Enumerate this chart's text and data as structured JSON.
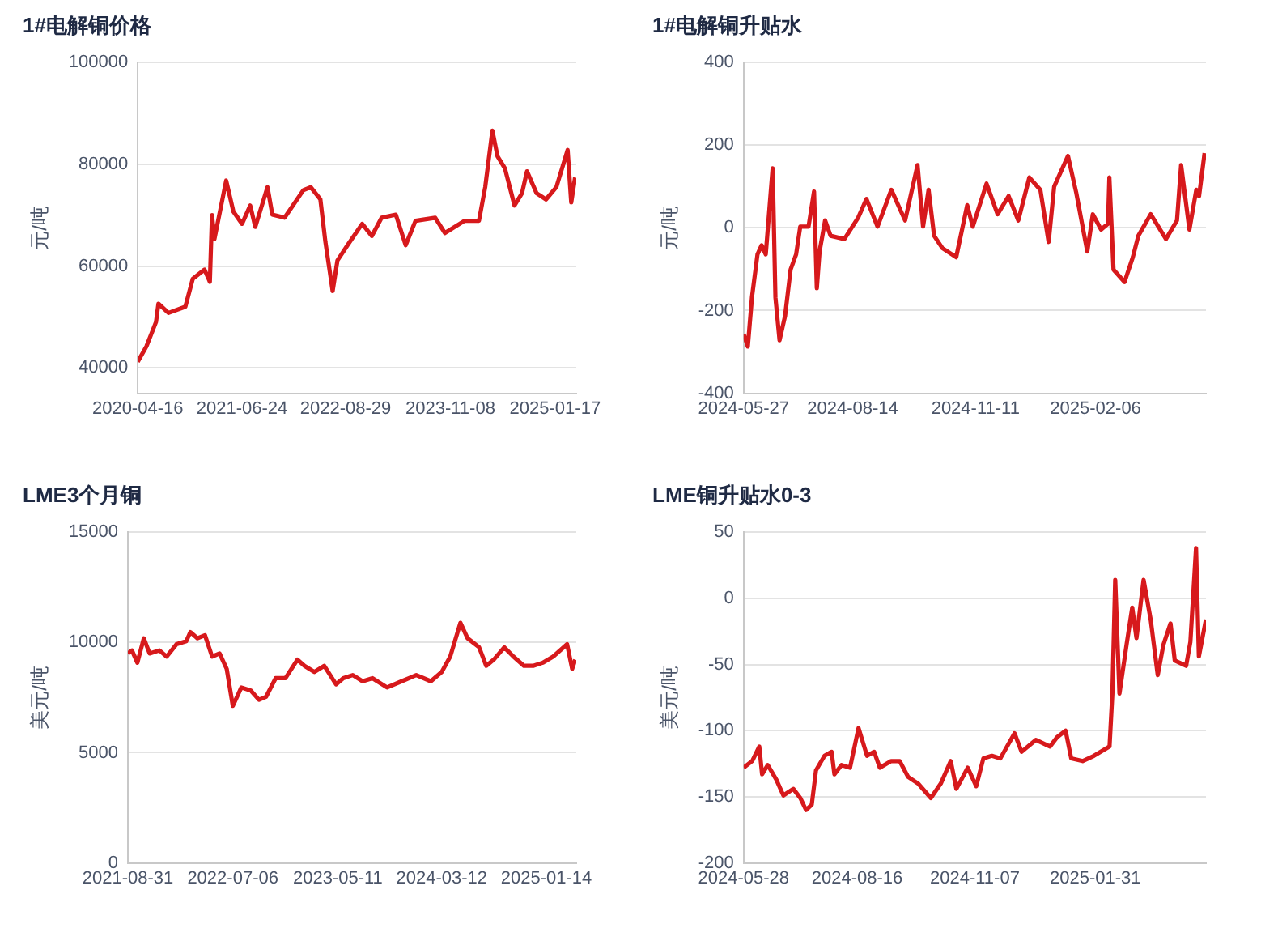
{
  "chart_data": [
    {
      "type": "line",
      "title": "1#电解铜价格",
      "ylabel": "元/吨",
      "grid": "y",
      "xlim": [
        "2020-04-16",
        "2025-04-15"
      ],
      "xticks": [
        {
          "value": "2020-04-16",
          "label": "2020-04-16"
        },
        {
          "value": "2021-06-24",
          "label": "2021-06-24"
        },
        {
          "value": "2022-08-29",
          "label": "2022-08-29"
        },
        {
          "value": "2023-11-08",
          "label": "2023-11-08"
        },
        {
          "value": "2025-01-17",
          "label": "2025-01-17"
        }
      ],
      "ylim": [
        35000,
        100000
      ],
      "yticks": [
        40000,
        60000,
        80000,
        100000
      ],
      "series": [
        {
          "color": "#d7191c",
          "x": [
            "2020-04-16",
            "2020-05-22",
            "2020-07-01",
            "2020-07-11",
            "2020-08-22",
            "2020-10-31",
            "2020-12-01",
            "2021-01-19",
            "2021-02-10",
            "2021-02-19",
            "2021-03-01",
            "2021-04-19",
            "2021-05-19",
            "2021-06-24",
            "2021-07-28",
            "2021-08-18",
            "2021-10-08",
            "2021-10-28",
            "2021-12-18",
            "2022-03-06",
            "2022-04-06",
            "2022-05-16",
            "2022-06-06",
            "2022-07-06",
            "2022-07-26",
            "2022-09-06",
            "2022-11-06",
            "2022-12-16",
            "2023-01-26",
            "2023-03-26",
            "2023-05-06",
            "2023-06-16",
            "2023-09-06",
            "2023-10-16",
            "2024-01-06",
            "2024-03-06",
            "2024-04-01",
            "2024-05-01",
            "2024-05-22",
            "2024-06-22",
            "2024-08-01",
            "2024-09-01",
            "2024-09-22",
            "2024-11-01",
            "2024-12-10",
            "2025-01-22",
            "2025-03-10",
            "2025-03-25",
            "2025-04-10"
          ],
          "values": [
            41200,
            44200,
            49000,
            52600,
            50800,
            52000,
            57500,
            59300,
            56900,
            70000,
            65300,
            76800,
            70700,
            68300,
            71900,
            67700,
            75500,
            70100,
            69500,
            74900,
            75500,
            73100,
            64700,
            55100,
            61100,
            64100,
            68300,
            65900,
            69500,
            70100,
            64100,
            68900,
            69500,
            66500,
            68900,
            68900,
            75500,
            86600,
            81600,
            79200,
            71900,
            74300,
            78600,
            74300,
            73100,
            75500,
            82800,
            72500,
            77400
          ]
        }
      ]
    },
    {
      "type": "line",
      "title": "1#电解铜升贴水",
      "ylabel": "元/吨",
      "grid": "y",
      "xlim": [
        "2024-05-27",
        "2025-04-27"
      ],
      "xticks": [
        {
          "value": "2024-05-27",
          "label": "2024-05-27"
        },
        {
          "value": "2024-08-14",
          "label": "2024-08-14"
        },
        {
          "value": "2024-11-11",
          "label": "2024-11-11"
        },
        {
          "value": "2025-02-06",
          "label": "2025-02-06"
        }
      ],
      "ylim": [
        -400,
        400
      ],
      "yticks": [
        -400,
        -200,
        0,
        200,
        400
      ],
      "series": [
        {
          "color": "#d7191c",
          "x": [
            "2024-05-27",
            "2024-05-30",
            "2024-06-02",
            "2024-06-06",
            "2024-06-09",
            "2024-06-12",
            "2024-06-17",
            "2024-06-19",
            "2024-06-22",
            "2024-06-26",
            "2024-06-30",
            "2024-07-04",
            "2024-07-07",
            "2024-07-13",
            "2024-07-17",
            "2024-07-19",
            "2024-07-21",
            "2024-07-25",
            "2024-07-29",
            "2024-08-08",
            "2024-08-18",
            "2024-08-24",
            "2024-09-01",
            "2024-09-11",
            "2024-09-21",
            "2024-09-30",
            "2024-10-04",
            "2024-10-08",
            "2024-10-12",
            "2024-10-18",
            "2024-10-28",
            "2024-11-05",
            "2024-11-09",
            "2024-11-19",
            "2024-11-27",
            "2024-12-05",
            "2024-12-12",
            "2024-12-20",
            "2024-12-28",
            "2025-01-03",
            "2025-01-07",
            "2025-01-17",
            "2025-01-23",
            "2025-01-31",
            "2025-02-04",
            "2025-02-10",
            "2025-02-15",
            "2025-02-16",
            "2025-02-19",
            "2025-02-27",
            "2025-03-05",
            "2025-03-09",
            "2025-03-18",
            "2025-03-29",
            "2025-04-06",
            "2025-04-09",
            "2025-04-15",
            "2025-04-20",
            "2025-04-22",
            "2025-04-26"
          ],
          "values": [
            -257,
            -287,
            -168,
            -64,
            -42,
            -64,
            144,
            -168,
            -272,
            -213,
            -101,
            -64,
            3,
            3,
            88,
            -146,
            -57,
            18,
            -19,
            -27,
            25,
            70,
            3,
            92,
            18,
            152,
            3,
            92,
            -19,
            -49,
            -71,
            55,
            3,
            107,
            33,
            77,
            18,
            122,
            92,
            -34,
            100,
            174,
            85,
            -57,
            33,
            -4,
            10,
            122,
            -101,
            -131,
            -71,
            -19,
            33,
            -27,
            18,
            152,
            -4,
            92,
            77,
            181
          ]
        }
      ]
    },
    {
      "type": "line",
      "title": "LME3个月铜",
      "ylabel": "美元/吨",
      "grid": "y",
      "xlim": [
        "2021-08-31",
        "2025-04-12"
      ],
      "xticks": [
        {
          "value": "2021-08-31",
          "label": "2021-08-31"
        },
        {
          "value": "2022-07-06",
          "label": "2022-07-06"
        },
        {
          "value": "2023-05-11",
          "label": "2023-05-11"
        },
        {
          "value": "2024-03-12",
          "label": "2024-03-12"
        },
        {
          "value": "2025-01-14",
          "label": "2025-01-14"
        }
      ],
      "ylim": [
        0,
        15000
      ],
      "yticks": [
        0,
        5000,
        10000,
        15000
      ],
      "series": [
        {
          "color": "#d7191c",
          "x": [
            "2021-08-31",
            "2021-09-12",
            "2021-09-28",
            "2021-10-17",
            "2021-11-03",
            "2021-12-02",
            "2021-12-23",
            "2022-01-21",
            "2022-02-19",
            "2022-03-03",
            "2022-03-24",
            "2022-04-15",
            "2022-05-06",
            "2022-05-28",
            "2022-06-18",
            "2022-07-06",
            "2022-07-31",
            "2022-08-28",
            "2022-09-21",
            "2022-10-12",
            "2022-11-09",
            "2022-12-08",
            "2023-01-12",
            "2023-02-02",
            "2023-03-03",
            "2023-04-01",
            "2023-05-06",
            "2023-05-27",
            "2023-06-24",
            "2023-07-23",
            "2023-08-21",
            "2023-10-03",
            "2023-11-15",
            "2023-12-28",
            "2024-02-09",
            "2024-03-12",
            "2024-04-06",
            "2024-05-06",
            "2024-05-27",
            "2024-06-30",
            "2024-07-21",
            "2024-08-12",
            "2024-09-12",
            "2024-10-09",
            "2024-11-09",
            "2024-12-06",
            "2025-01-03",
            "2025-02-03",
            "2025-03-16",
            "2025-03-31",
            "2025-04-09"
          ],
          "values": [
            9500,
            9640,
            9080,
            10190,
            9500,
            9640,
            9360,
            9920,
            10060,
            10470,
            10190,
            10330,
            9360,
            9500,
            8800,
            7120,
            7960,
            7820,
            7400,
            7540,
            8380,
            8380,
            9220,
            8940,
            8660,
            8940,
            8100,
            8380,
            8520,
            8240,
            8380,
            7960,
            8240,
            8520,
            8240,
            8660,
            9360,
            10890,
            10190,
            9780,
            8940,
            9220,
            9780,
            9360,
            8940,
            8940,
            9080,
            9360,
            9920,
            8800,
            9220
          ]
        }
      ]
    },
    {
      "type": "line",
      "title": "LME铜升贴水0-3",
      "ylabel": "美元/吨",
      "grid": "y",
      "xlim": [
        "2024-05-28",
        "2025-04-19"
      ],
      "xticks": [
        {
          "value": "2024-05-28",
          "label": "2024-05-28"
        },
        {
          "value": "2024-08-16",
          "label": "2024-08-16"
        },
        {
          "value": "2024-11-07",
          "label": "2024-11-07"
        },
        {
          "value": "2025-01-31",
          "label": "2025-01-31"
        }
      ],
      "ylim": [
        -200,
        50
      ],
      "yticks": [
        -200,
        -150,
        -100,
        -50,
        0,
        50
      ],
      "series": [
        {
          "color": "#d7191c",
          "x": [
            "2024-05-28",
            "2024-06-03",
            "2024-06-08",
            "2024-06-10",
            "2024-06-14",
            "2024-06-20",
            "2024-06-25",
            "2024-07-02",
            "2024-07-07",
            "2024-07-11",
            "2024-07-15",
            "2024-07-18",
            "2024-07-24",
            "2024-07-29",
            "2024-07-31",
            "2024-08-05",
            "2024-08-11",
            "2024-08-17",
            "2024-08-23",
            "2024-08-28",
            "2024-09-01",
            "2024-09-09",
            "2024-09-15",
            "2024-09-21",
            "2024-09-28",
            "2024-10-07",
            "2024-10-14",
            "2024-10-21",
            "2024-10-25",
            "2024-11-02",
            "2024-11-08",
            "2024-11-13",
            "2024-11-19",
            "2024-11-25",
            "2024-12-05",
            "2024-12-10",
            "2024-12-20",
            "2024-12-30",
            "2025-01-04",
            "2025-01-10",
            "2025-01-14",
            "2025-01-22",
            "2025-01-30",
            "2025-02-10",
            "2025-02-12",
            "2025-02-14",
            "2025-02-17",
            "2025-02-22",
            "2025-02-26",
            "2025-03-01",
            "2025-03-06",
            "2025-03-11",
            "2025-03-16",
            "2025-03-20",
            "2025-03-25",
            "2025-03-28",
            "2025-04-05",
            "2025-04-08",
            "2025-04-12",
            "2025-04-14",
            "2025-04-19"
          ],
          "values": [
            -128,
            -123,
            -112,
            -133,
            -126,
            -137,
            -149,
            -144,
            -151,
            -160,
            -156,
            -130,
            -119,
            -116,
            -133,
            -126,
            -128,
            -98,
            -119,
            -116,
            -128,
            -123,
            -123,
            -135,
            -140,
            -151,
            -140,
            -123,
            -144,
            -128,
            -142,
            -121,
            -119,
            -121,
            -102,
            -116,
            -107,
            -112,
            -105,
            -100,
            -121,
            -123,
            -119,
            -112,
            -72,
            14,
            -72,
            -35,
            -7,
            -30,
            14,
            -16,
            -58,
            -35,
            -19,
            -47,
            -51,
            -33,
            38,
            -44,
            -16
          ]
        }
      ]
    }
  ]
}
